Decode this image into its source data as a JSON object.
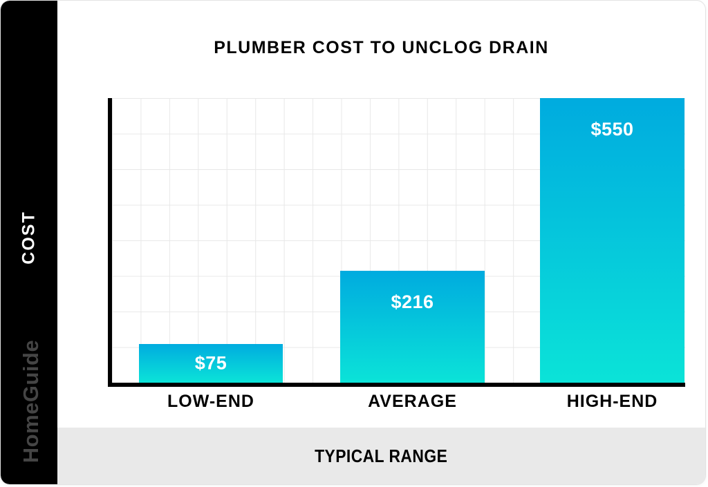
{
  "sidebar": {
    "y_axis_label": "COST",
    "brand": "HomeGuide"
  },
  "chart_data": {
    "type": "bar",
    "title": "PLUMBER COST TO UNCLOG DRAIN",
    "categories": [
      "LOW-END",
      "AVERAGE",
      "HIGH-END"
    ],
    "values": [
      75,
      216,
      550
    ],
    "value_labels": [
      "$75",
      "$216",
      "$550"
    ],
    "xlabel": "TYPICAL RANGE",
    "ylabel": "COST",
    "ylim": [
      0,
      550
    ],
    "grid": true,
    "legend": "none",
    "colors": {
      "bar_gradient_top": "#00abdf",
      "bar_gradient_bottom": "#0be3d8",
      "axis": "#000000",
      "gridline": "#e8e8e8",
      "value_label": "#ffffff",
      "footer_band_bg": "#e9e9e9",
      "sidebar_bg": "#000000",
      "watermark_text": "#454545"
    }
  }
}
